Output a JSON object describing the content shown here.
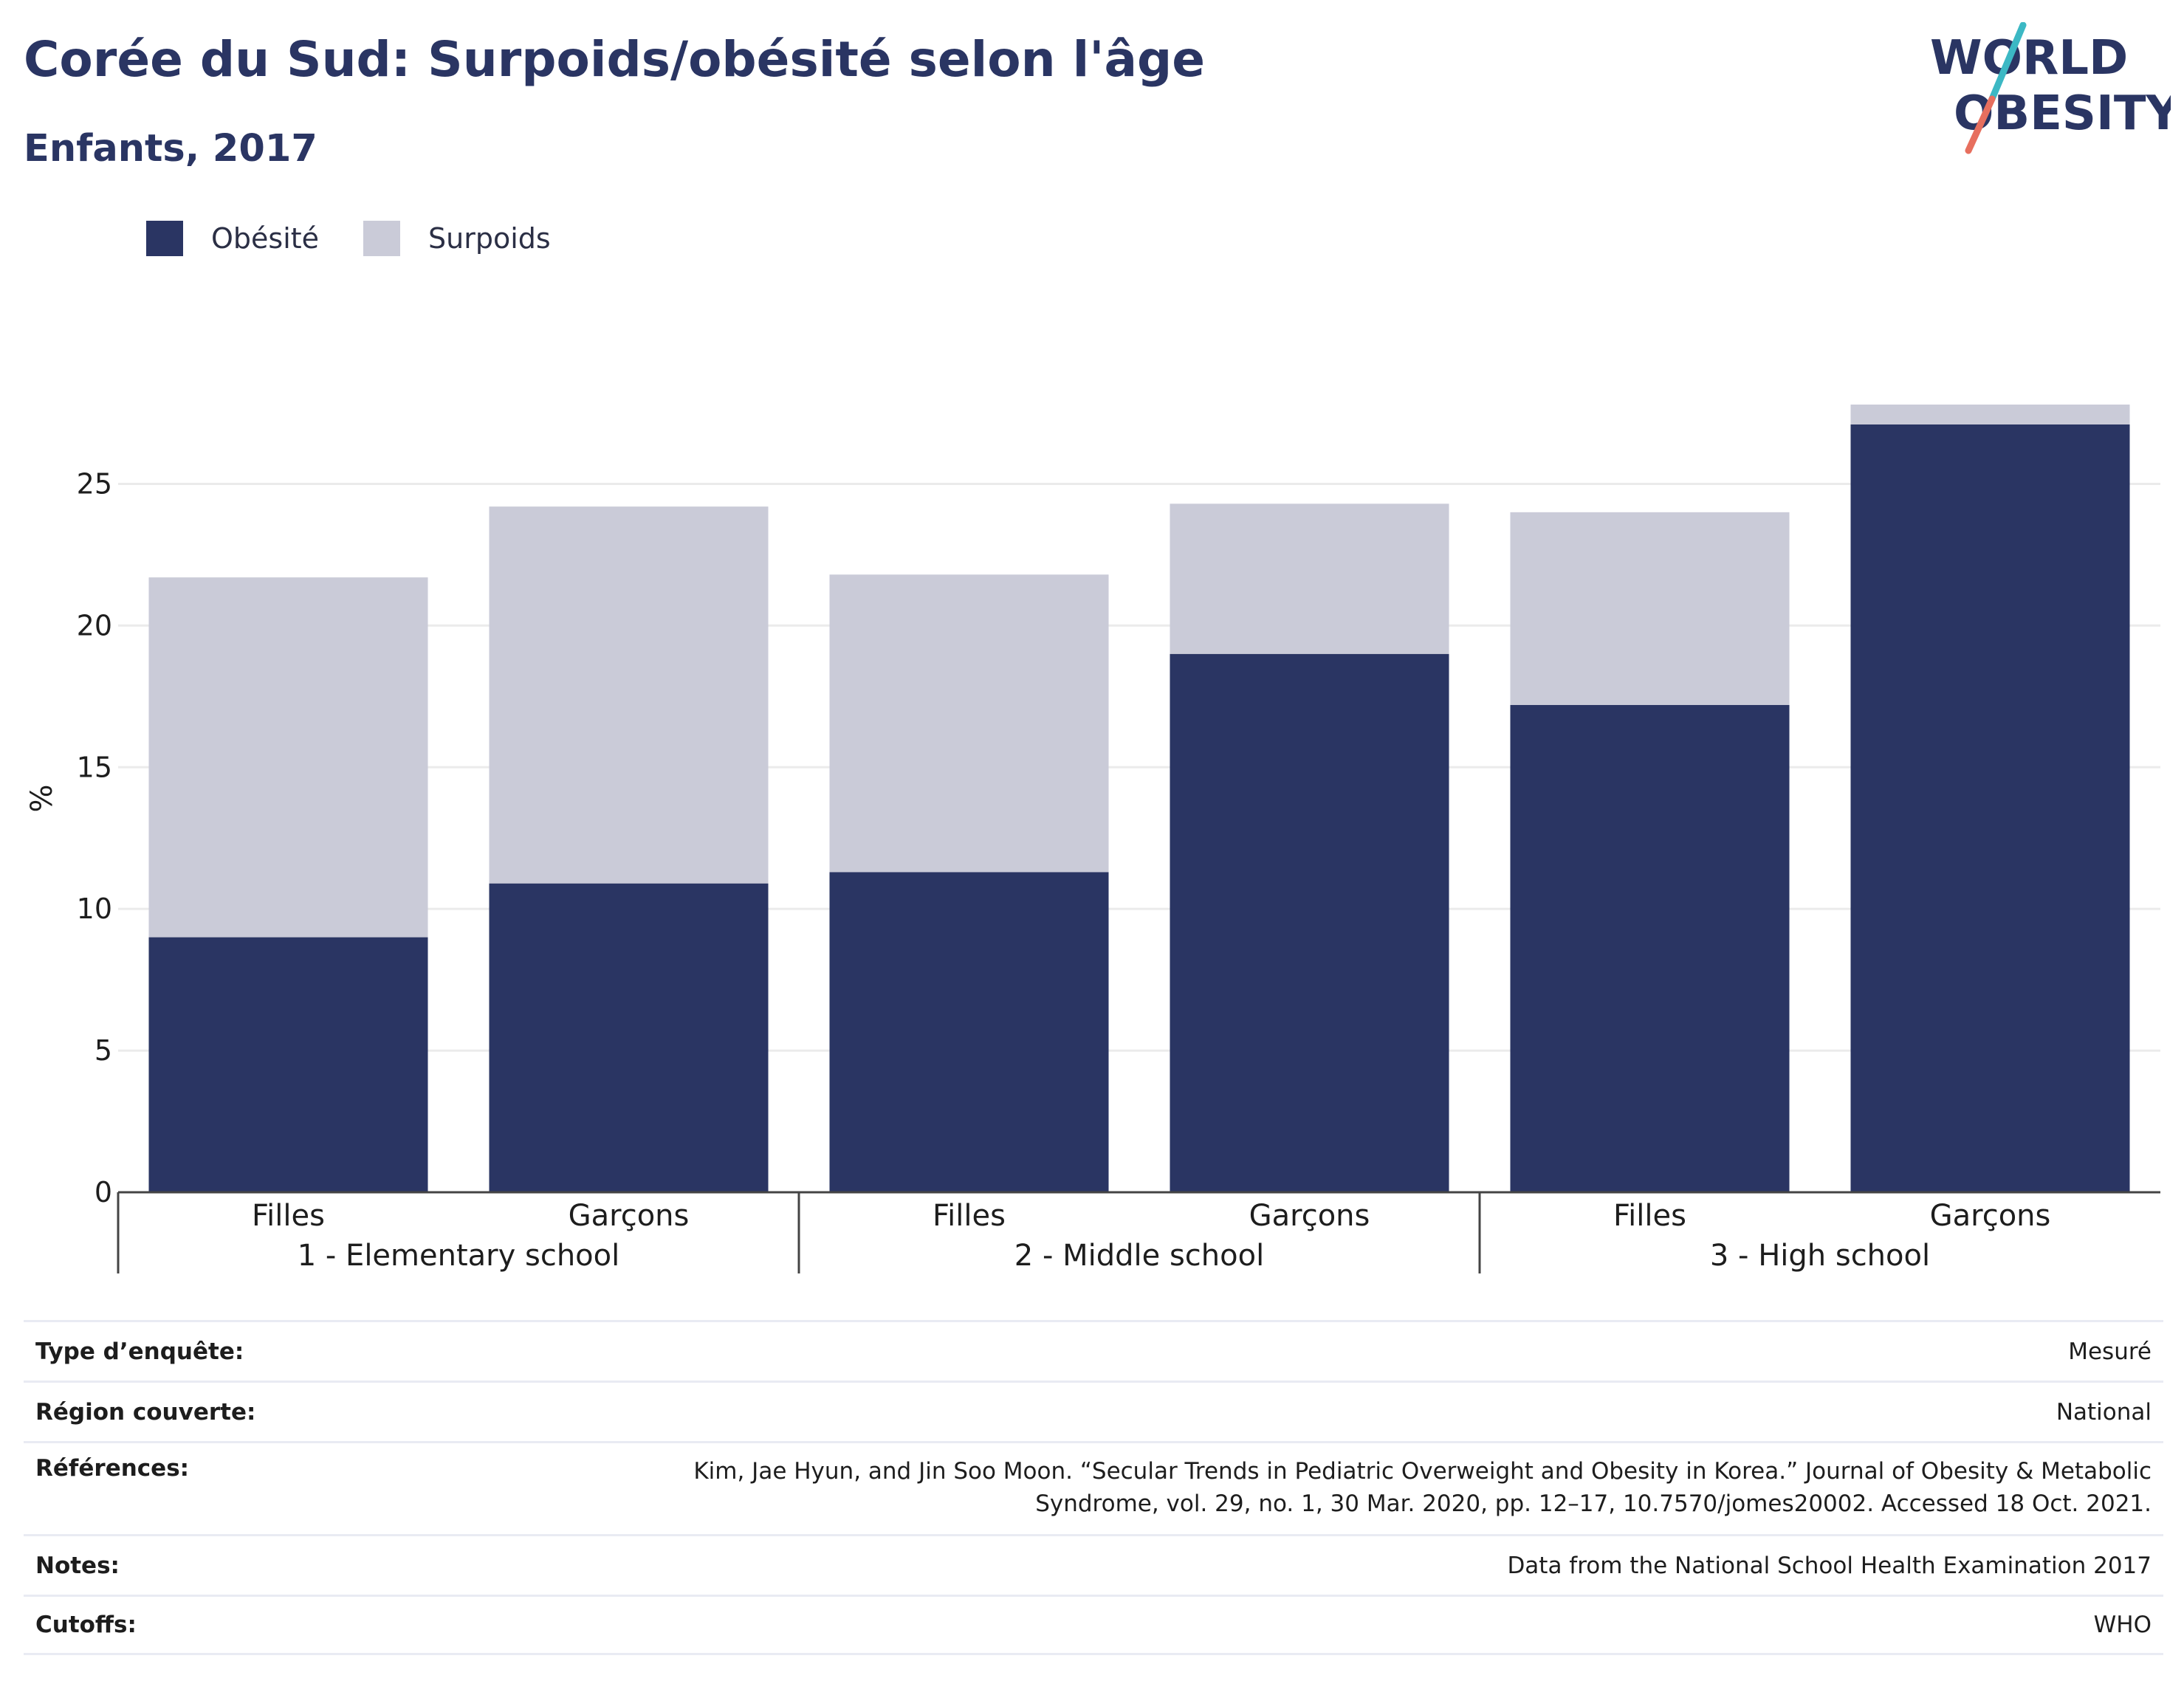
{
  "header": {
    "title": "Corée du Sud: Surpoids/obésité selon l'âge",
    "subtitle": "Enfants, 2017"
  },
  "logo": {
    "line1": "WORLD",
    "line2": "OBESITY",
    "colors": {
      "text": "#2a3563",
      "slash_top": "#3cb8c4",
      "slash_bottom": "#e76f5e"
    }
  },
  "legend": {
    "items": [
      {
        "label": "Obésité",
        "color": "#2a3563"
      },
      {
        "label": "Surpoids",
        "color": "#cacbd8"
      }
    ]
  },
  "chart_data": {
    "type": "bar",
    "stacked": true,
    "ylabel": "%",
    "ylim": [
      0,
      27.8
    ],
    "yticks": [
      0,
      5,
      10,
      15,
      20,
      25
    ],
    "grid": true,
    "legend_position": "top-left",
    "groups": [
      {
        "label": "1 - Elementary school",
        "categories": [
          "Filles",
          "Garçons"
        ]
      },
      {
        "label": "2 - Middle school",
        "categories": [
          "Filles",
          "Garçons"
        ]
      },
      {
        "label": "3 - High school",
        "categories": [
          "Filles",
          "Garçons"
        ]
      }
    ],
    "series": [
      {
        "name": "Obésité",
        "color": "#2a3563",
        "values": [
          9.0,
          10.9,
          11.3,
          19.0,
          17.2,
          27.1
        ]
      },
      {
        "name": "Surpoids",
        "color": "#cacbd8",
        "values": [
          12.7,
          13.3,
          10.5,
          5.3,
          6.8,
          0.7
        ]
      }
    ]
  },
  "info_table": [
    {
      "label": "Type d’enquête:",
      "value": "Mesuré"
    },
    {
      "label": "Région couverte:",
      "value": "National"
    },
    {
      "label": "Références:",
      "value": "Kim, Jae Hyun, and Jin Soo Moon. “Secular Trends in Pediatric Overweight and Obesity in Korea.” Journal of Obesity & Metabolic Syndrome, vol. 29, no. 1, 30 Mar. 2020, pp. 12–17, 10.7570/jomes20002. Accessed 18 Oct. 2021."
    },
    {
      "label": "Notes:",
      "value": "Data from the National School Health Examination 2017"
    },
    {
      "label": "Cutoffs:",
      "value": "WHO"
    }
  ]
}
